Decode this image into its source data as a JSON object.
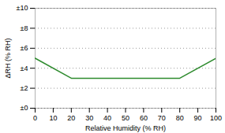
{
  "chart_data": {
    "type": "line",
    "x": [
      0,
      20,
      80,
      100
    ],
    "values": [
      5,
      3,
      3,
      5
    ],
    "color": "#2e8b2e",
    "xlabel": "Relative Humidity (% RH)",
    "ylabel": "ΔRH (% RH)",
    "xlim": [
      0,
      100
    ],
    "ylim": [
      0,
      10
    ],
    "xticks": [
      0,
      10,
      20,
      30,
      40,
      50,
      60,
      70,
      80,
      90,
      100
    ],
    "yticks": [
      {
        "value": 0,
        "label": "±0"
      },
      {
        "value": 2,
        "label": "±2"
      },
      {
        "value": 4,
        "label": "±4"
      },
      {
        "value": 6,
        "label": "±6"
      },
      {
        "value": 8,
        "label": "±8"
      },
      {
        "value": 10,
        "label": "±10"
      }
    ],
    "grid": "y"
  }
}
